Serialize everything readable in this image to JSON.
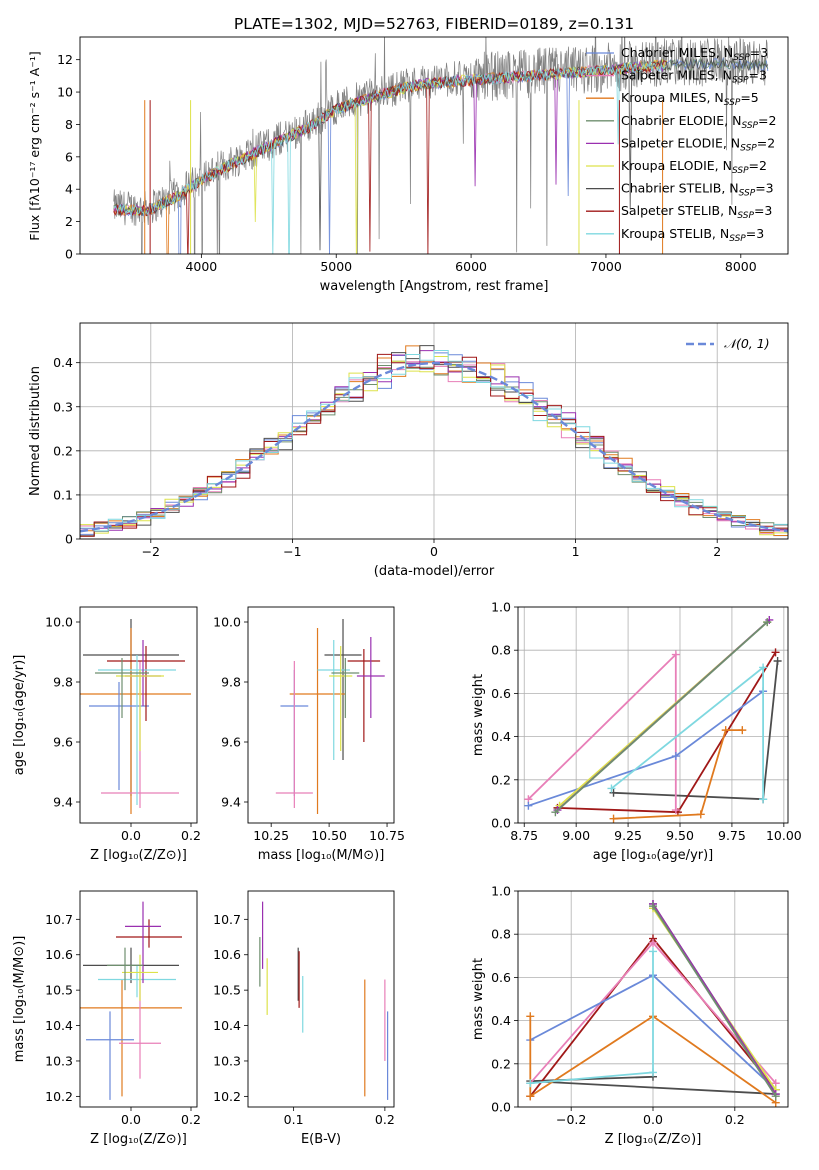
{
  "colors": {
    "Chabrier MILES": "#6a89d9",
    "Salpeter MILES": "#e87fb8",
    "Kroupa MILES": "#e07a1f",
    "Chabrier ELODIE": "#6f8f6f",
    "Salpeter ELODIE": "#9a30b0",
    "Kroupa ELODIE": "#dde24a",
    "Chabrier STELIB": "#4d4d4d",
    "Salpeter STELIB": "#a01818",
    "Kroupa STELIB": "#7fd8e0",
    "data": "#808080",
    "gaussian": "#6a89d9"
  },
  "chart_data": [
    {
      "id": "spectrum",
      "type": "line",
      "title": "PLATE=1302, MJD=52763, FIBERID=0189, z=0.131",
      "xlabel": "wavelength [Angstrom, rest frame]",
      "ylabel": "Flux [fλ10⁻¹⁷ erg cm⁻² s⁻¹ A⁻¹]",
      "xlim": [
        3100,
        8350
      ],
      "ylim": [
        0,
        13.4
      ],
      "xticks": [
        4000,
        5000,
        6000,
        7000,
        8000
      ],
      "yticks": [
        0,
        2,
        4,
        6,
        8,
        10,
        12
      ],
      "grid": false,
      "legend_position": "right",
      "legend": [
        {
          "label": "Chabrier MILES, N",
          "sub": "SSP",
          "suffix": "=3",
          "color": "#6a89d9"
        },
        {
          "label": "Salpeter MILES, N",
          "sub": "SSP",
          "suffix": "=3",
          "color": "#e87fb8"
        },
        {
          "label": "Kroupa MILES, N",
          "sub": "SSP",
          "suffix": "=5",
          "color": "#e07a1f"
        },
        {
          "label": "Chabrier ELODIE, N",
          "sub": "SSP",
          "suffix": "=2",
          "color": "#6f8f6f"
        },
        {
          "label": "Salpeter ELODIE, N",
          "sub": "SSP",
          "suffix": "=2",
          "color": "#9a30b0"
        },
        {
          "label": "Kroupa ELODIE, N",
          "sub": "SSP",
          "suffix": "=2",
          "color": "#dde24a"
        },
        {
          "label": "Chabrier STELIB, N",
          "sub": "SSP",
          "suffix": "=3",
          "color": "#4d4d4d"
        },
        {
          "label": "Salpeter STELIB, N",
          "sub": "SSP",
          "suffix": "=3",
          "color": "#a01818"
        },
        {
          "label": "Kroupa STELIB, N",
          "sub": "SSP",
          "suffix": "=3",
          "color": "#7fd8e0"
        }
      ],
      "continuum": {
        "x": [
          3350,
          3600,
          3800,
          4000,
          4200,
          4500,
          4800,
          5000,
          5300,
          5600,
          6000,
          6500,
          7000,
          7400,
          7800,
          8200
        ],
        "y": [
          2.9,
          2.8,
          3.6,
          4.7,
          5.6,
          6.8,
          8.0,
          9.1,
          9.9,
          10.6,
          10.9,
          11.2,
          11.5,
          11.8,
          11.9,
          11.8
        ]
      },
      "data_range": [
        3350,
        8200
      ],
      "models_range": [
        3350,
        7450
      ]
    },
    {
      "id": "residuals",
      "type": "bar",
      "xlabel": "(data-model)/error",
      "ylabel": "Normed distribution",
      "xlim": [
        -2.5,
        2.5
      ],
      "ylim": [
        0,
        0.49
      ],
      "xticks": [
        -2,
        -1,
        0,
        1,
        2
      ],
      "yticks": [
        0.0,
        0.1,
        0.2,
        0.3,
        0.4
      ],
      "grid": true,
      "legend": [
        {
          "label": "𝒩(0, 1)",
          "color": "#6a89d9"
        }
      ],
      "legend_position": "top-right",
      "bin_width": 0.1
    },
    {
      "id": "z-age",
      "type": "scatter",
      "xlabel": "Z [log₁₀(Z/Z⊙)]",
      "ylabel": "age  [log₁₀(age/yr)]",
      "xlim": [
        -0.17,
        0.22
      ],
      "ylim": [
        9.33,
        10.05
      ],
      "xticks": [
        0.0,
        0.2
      ],
      "xticklabels": [
        "0.0",
        "0.2"
      ],
      "yticks": [
        9.4,
        9.6,
        9.8,
        10.0
      ],
      "yticklabels": [
        "9.4",
        "9.6",
        "9.8",
        "10.0"
      ],
      "points": [
        {
          "color": "#4d4d4d",
          "x": 0.0,
          "y": 9.89,
          "xerr": 0.16,
          "yerr": [
            0.47,
            0.12
          ]
        },
        {
          "color": "#e07a1f",
          "x": 0.0,
          "y": 9.76,
          "xerr": 0.2,
          "yerr": [
            0.4,
            0.22
          ]
        },
        {
          "color": "#6a89d9",
          "x": -0.04,
          "y": 9.72,
          "xerr": 0.1,
          "yerr": [
            0.28,
            0.08
          ]
        },
        {
          "color": "#e87fb8",
          "x": 0.03,
          "y": 9.43,
          "xerr": 0.13,
          "yerr": [
            0.05,
            0.44
          ]
        },
        {
          "color": "#a01818",
          "x": 0.05,
          "y": 9.87,
          "xerr": 0.13,
          "yerr": [
            0.2,
            0.05
          ]
        },
        {
          "color": "#7fd8e0",
          "x": 0.02,
          "y": 9.84,
          "xerr": 0.13,
          "yerr": [
            0.45,
            0.05
          ]
        },
        {
          "color": "#9a30b0",
          "x": 0.04,
          "y": 9.82,
          "xerr": 0.06,
          "yerr": [
            0.1,
            0.12
          ]
        },
        {
          "color": "#dde24a",
          "x": 0.03,
          "y": 9.82,
          "xerr": 0.08,
          "yerr": [
            0.25,
            0.02
          ]
        },
        {
          "color": "#6f8f6f",
          "x": -0.03,
          "y": 9.83,
          "xerr": 0.09,
          "yerr": [
            0.15,
            0.05
          ]
        }
      ]
    },
    {
      "id": "mass-age",
      "type": "scatter",
      "xlabel": "mass [log₁₀(M/M⊙)]",
      "ylabel": "",
      "xlim": [
        10.15,
        10.78
      ],
      "ylim": [
        9.33,
        10.05
      ],
      "xticks": [
        10.25,
        10.5,
        10.75
      ],
      "xticklabels": [
        "10.25",
        "10.50",
        "10.75"
      ],
      "yticks": [
        9.4,
        9.6,
        9.8,
        10.0
      ],
      "yticklabels": [
        "9.4",
        "9.6",
        "9.8",
        "10.0"
      ],
      "points": [
        {
          "color": "#4d4d4d",
          "x": 10.56,
          "y": 9.89,
          "xerr": 0.08,
          "yerr": [
            0.35,
            0.12
          ]
        },
        {
          "color": "#e07a1f",
          "x": 10.45,
          "y": 9.76,
          "xerr": 0.12,
          "yerr": [
            0.4,
            0.22
          ]
        },
        {
          "color": "#6a89d9",
          "x": 10.35,
          "y": 9.72,
          "xerr": 0.06,
          "yerr": [
            0.3,
            0.12
          ]
        },
        {
          "color": "#e87fb8",
          "x": 10.35,
          "y": 9.43,
          "xerr": 0.08,
          "yerr": [
            0.05,
            0.44
          ]
        },
        {
          "color": "#a01818",
          "x": 10.65,
          "y": 9.87,
          "xerr": 0.07,
          "yerr": [
            0.27,
            0.04
          ]
        },
        {
          "color": "#7fd8e0",
          "x": 10.52,
          "y": 9.84,
          "xerr": 0.07,
          "yerr": [
            0.3,
            0.1
          ]
        },
        {
          "color": "#9a30b0",
          "x": 10.68,
          "y": 9.82,
          "xerr": 0.06,
          "yerr": [
            0.14,
            0.13
          ]
        },
        {
          "color": "#dde24a",
          "x": 10.55,
          "y": 9.82,
          "xerr": 0.05,
          "yerr": [
            0.25,
            0.1
          ]
        },
        {
          "color": "#6f8f6f",
          "x": 10.57,
          "y": 9.83,
          "xerr": 0.06,
          "yerr": [
            0.15,
            0.05
          ]
        }
      ]
    },
    {
      "id": "age-weight",
      "type": "line",
      "xlabel": "age  [log₁₀(age/yr)]",
      "ylabel": "mass weight",
      "xlim": [
        8.72,
        10.02
      ],
      "ylim": [
        0.0,
        1.0
      ],
      "xticks": [
        8.75,
        9.0,
        9.25,
        9.5,
        9.75,
        10.0
      ],
      "xticklabels": [
        "8.75",
        "9.00",
        "9.25",
        "9.50",
        "9.75",
        "10.00"
      ],
      "yticks": [
        0.0,
        0.2,
        0.4,
        0.6,
        0.8,
        1.0
      ],
      "yticklabels": [
        "0.0",
        "0.2",
        "0.4",
        "0.6",
        "0.8",
        "1.0"
      ],
      "grid": true,
      "series": [
        {
          "color": "#4d4d4d",
          "x": [
            9.18,
            9.9,
            9.97
          ],
          "y": [
            0.14,
            0.11,
            0.75
          ]
        },
        {
          "color": "#a01818",
          "x": [
            8.91,
            9.49,
            9.96
          ],
          "y": [
            0.07,
            0.05,
            0.79
          ]
        },
        {
          "color": "#e87fb8",
          "x": [
            8.77,
            9.48,
            9.48
          ],
          "y": [
            0.11,
            0.78,
            0.06
          ]
        },
        {
          "color": "#6a89d9",
          "x": [
            8.77,
            9.48,
            9.9
          ],
          "y": [
            0.08,
            0.31,
            0.61
          ]
        },
        {
          "color": "#7fd8e0",
          "x": [
            9.17,
            9.9,
            9.9
          ],
          "y": [
            0.16,
            0.72,
            0.11
          ]
        },
        {
          "color": "#e07a1f",
          "x": [
            9.18,
            9.6,
            9.72,
            9.8
          ],
          "y": [
            0.02,
            0.04,
            0.43,
            0.43
          ]
        },
        {
          "color": "#dde24a",
          "x": [
            8.92,
            9.92
          ],
          "y": [
            0.08,
            0.93
          ]
        },
        {
          "color": "#9a30b0",
          "x": [
            8.91,
            9.93
          ],
          "y": [
            0.06,
            0.94
          ]
        },
        {
          "color": "#6f8f6f",
          "x": [
            8.9,
            9.92
          ],
          "y": [
            0.05,
            0.93
          ]
        }
      ]
    },
    {
      "id": "z-mass",
      "type": "scatter",
      "xlabel": "Z [log₁₀(Z/Z⊙)]",
      "ylabel": "mass [log₁₀(M/M⊙)]",
      "xlim": [
        -0.17,
        0.22
      ],
      "ylim": [
        10.17,
        10.78
      ],
      "xticks": [
        0.0,
        0.2
      ],
      "xticklabels": [
        "0.0",
        "0.2"
      ],
      "yticks": [
        10.2,
        10.3,
        10.4,
        10.5,
        10.6,
        10.7
      ],
      "yticklabels": [
        "10.2",
        "10.3",
        "10.4",
        "10.5",
        "10.6",
        "10.7"
      ],
      "points": [
        {
          "color": "#4d4d4d",
          "x": 0.0,
          "y": 10.57,
          "xerr": 0.16,
          "yerr": [
            0.05,
            0.05
          ]
        },
        {
          "color": "#e07a1f",
          "x": -0.03,
          "y": 10.45,
          "xerr": 0.2,
          "yerr": [
            0.25,
            0.08
          ]
        },
        {
          "color": "#6a89d9",
          "x": -0.07,
          "y": 10.36,
          "xerr": 0.08,
          "yerr": [
            0.17,
            0.08
          ]
        },
        {
          "color": "#e87fb8",
          "x": 0.03,
          "y": 10.35,
          "xerr": 0.07,
          "yerr": [
            0.1,
            0.18
          ]
        },
        {
          "color": "#a01818",
          "x": 0.06,
          "y": 10.65,
          "xerr": 0.11,
          "yerr": [
            0.03,
            0.05
          ]
        },
        {
          "color": "#7fd8e0",
          "x": 0.02,
          "y": 10.53,
          "xerr": 0.13,
          "yerr": [
            0.05,
            0.04
          ]
        },
        {
          "color": "#9a30b0",
          "x": 0.04,
          "y": 10.68,
          "xerr": 0.06,
          "yerr": [
            0.16,
            0.07
          ]
        },
        {
          "color": "#dde24a",
          "x": 0.03,
          "y": 10.55,
          "xerr": 0.06,
          "yerr": [
            0.08,
            0.05
          ]
        },
        {
          "color": "#6f8f6f",
          "x": -0.02,
          "y": 10.57,
          "xerr": 0.06,
          "yerr": [
            0.07,
            0.05
          ]
        }
      ]
    },
    {
      "id": "ebv-mass",
      "type": "scatter",
      "xlabel": "E(B-V)",
      "ylabel": "",
      "xlim": [
        0.05,
        0.21
      ],
      "ylim": [
        10.17,
        10.78
      ],
      "xticks": [
        0.1,
        0.2
      ],
      "xticklabels": [
        "0.1",
        "0.2"
      ],
      "yticks": [
        10.2,
        10.3,
        10.4,
        10.5,
        10.6,
        10.7
      ],
      "yticklabels": [
        "10.2",
        "10.3",
        "10.4",
        "10.5",
        "10.6",
        "10.7"
      ],
      "points": [
        {
          "color": "#6f8f6f",
          "x": 0.063,
          "y": 10.57,
          "xerr": 0,
          "yerr": [
            0.06,
            0.08
          ]
        },
        {
          "color": "#9a30b0",
          "x": 0.066,
          "y": 10.68,
          "xerr": 0,
          "yerr": [
            0.12,
            0.07
          ]
        },
        {
          "color": "#dde24a",
          "x": 0.071,
          "y": 10.55,
          "xerr": 0,
          "yerr": [
            0.12,
            0.04
          ]
        },
        {
          "color": "#4d4d4d",
          "x": 0.105,
          "y": 10.57,
          "xerr": 0,
          "yerr": [
            0.1,
            0.05
          ]
        },
        {
          "color": "#a01818",
          "x": 0.106,
          "y": 10.55,
          "xerr": 0,
          "yerr": [
            0.1,
            0.06
          ]
        },
        {
          "color": "#7fd8e0",
          "x": 0.11,
          "y": 10.5,
          "xerr": 0,
          "yerr": [
            0.12,
            0.04
          ]
        },
        {
          "color": "#e07a1f",
          "x": 0.178,
          "y": 10.45,
          "xerr": 0,
          "yerr": [
            0.25,
            0.08
          ]
        },
        {
          "color": "#e87fb8",
          "x": 0.2,
          "y": 10.35,
          "xerr": 0,
          "yerr": [
            0.05,
            0.18
          ]
        },
        {
          "color": "#6a89d9",
          "x": 0.203,
          "y": 10.36,
          "xerr": 0,
          "yerr": [
            0.17,
            0.08
          ]
        }
      ]
    },
    {
      "id": "z-weight",
      "type": "line",
      "xlabel": "Z [log₁₀(Z/Z⊙)]",
      "ylabel": "mass weight",
      "xlim": [
        -0.33,
        0.33
      ],
      "ylim": [
        0.0,
        1.0
      ],
      "xticks": [
        -0.2,
        0.0,
        0.2
      ],
      "xticklabels": [
        "−0.2",
        "0.0",
        "0.2"
      ],
      "yticks": [
        0.0,
        0.2,
        0.4,
        0.6,
        0.8,
        1.0
      ],
      "yticklabels": [
        "0.0",
        "0.2",
        "0.4",
        "0.6",
        "0.8",
        "1.0"
      ],
      "grid": true,
      "series": [
        {
          "color": "#4d4d4d",
          "x": [
            0.0,
            0.3,
            -0.3,
            0.0
          ],
          "y": [
            0.94,
            0.06,
            0.12,
            0.14
          ]
        },
        {
          "color": "#a01818",
          "x": [
            -0.3,
            0.0,
            0.3
          ],
          "y": [
            0.05,
            0.78,
            0.08
          ]
        },
        {
          "color": "#e87fb8",
          "x": [
            -0.3,
            0.0,
            0.3
          ],
          "y": [
            0.11,
            0.76,
            0.11
          ]
        },
        {
          "color": "#6a89d9",
          "x": [
            -0.3,
            0.0,
            0.3
          ],
          "y": [
            0.31,
            0.61,
            0.08
          ]
        },
        {
          "color": "#e07a1f",
          "x": [
            -0.3,
            -0.3,
            0.0,
            0.3
          ],
          "y": [
            0.42,
            0.05,
            0.42,
            0.02
          ]
        },
        {
          "color": "#7fd8e0",
          "x": [
            -0.3,
            0.0,
            0.0
          ],
          "y": [
            0.11,
            0.16,
            0.72
          ]
        },
        {
          "color": "#dde24a",
          "x": [
            0.0,
            0.3
          ],
          "y": [
            0.92,
            0.08
          ]
        },
        {
          "color": "#9a30b0",
          "x": [
            0.0,
            0.3
          ],
          "y": [
            0.94,
            0.06
          ]
        },
        {
          "color": "#6f8f6f",
          "x": [
            0.0,
            0.3
          ],
          "y": [
            0.93,
            0.05
          ]
        }
      ]
    }
  ]
}
